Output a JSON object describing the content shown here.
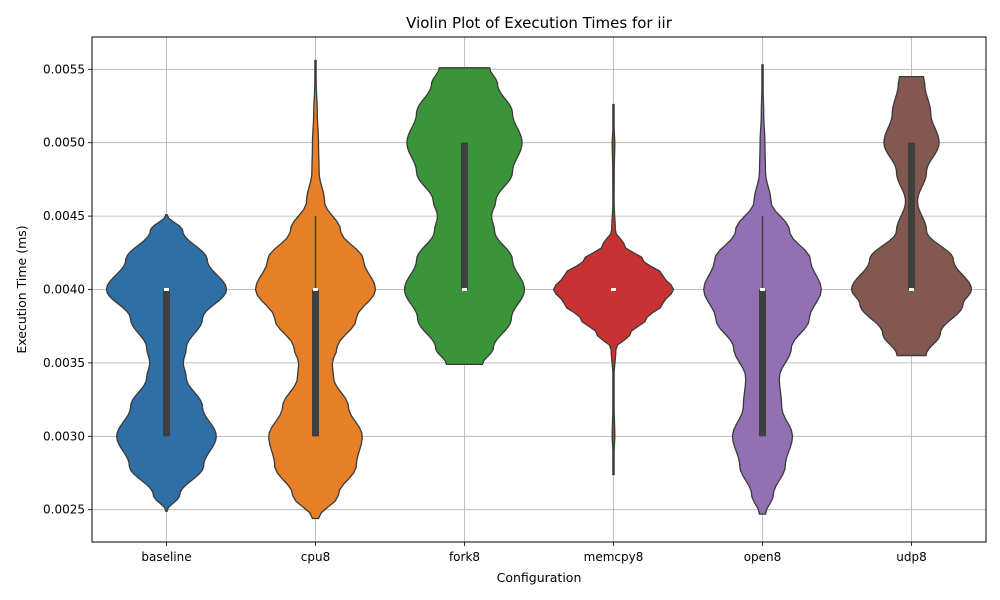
{
  "chart_data": {
    "type": "violin",
    "title": "Violin Plot of Execution Times for iir",
    "xlabel": "Configuration",
    "ylabel": "Execution Time (ms)",
    "ylim": [
      0.00228,
      0.00572
    ],
    "yticks": [
      "0.0025",
      "0.0030",
      "0.0035",
      "0.0040",
      "0.0045",
      "0.0050",
      "0.0055"
    ],
    "ytick_values": [
      0.0025,
      0.003,
      0.0035,
      0.004,
      0.0045,
      0.005,
      0.0055
    ],
    "grid": true,
    "categories": [
      "baseline",
      "cpu8",
      "fork8",
      "memcpy8",
      "open8",
      "udp8"
    ],
    "series": [
      {
        "category": "baseline",
        "color": "#2f6fa5",
        "ymin": 0.00249,
        "ymax": 0.00451,
        "q1": 0.003,
        "median": 0.004,
        "q3": 0.004,
        "whisker_low": 0.003,
        "whisker_high": 0.004,
        "density": [
          [
            0.00249,
            0.005
          ],
          [
            0.0026,
            0.22
          ],
          [
            0.0028,
            0.62
          ],
          [
            0.003,
            0.83
          ],
          [
            0.0032,
            0.6
          ],
          [
            0.0034,
            0.33
          ],
          [
            0.0035,
            0.28
          ],
          [
            0.0036,
            0.33
          ],
          [
            0.0038,
            0.6
          ],
          [
            0.004,
            1.0
          ],
          [
            0.0042,
            0.68
          ],
          [
            0.0044,
            0.27
          ],
          [
            0.00451,
            0.005
          ]
        ]
      },
      {
        "category": "cpu8",
        "color": "#e67f27",
        "ymin": 0.00244,
        "ymax": 0.00556,
        "q1": 0.003,
        "median": 0.004,
        "q3": 0.004,
        "whisker_low": 0.003,
        "whisker_high": 0.0045,
        "density": [
          [
            0.00244,
            0.05
          ],
          [
            0.0026,
            0.38
          ],
          [
            0.0028,
            0.68
          ],
          [
            0.003,
            0.78
          ],
          [
            0.0032,
            0.55
          ],
          [
            0.0034,
            0.3
          ],
          [
            0.0035,
            0.28
          ],
          [
            0.0036,
            0.36
          ],
          [
            0.0038,
            0.68
          ],
          [
            0.004,
            1.0
          ],
          [
            0.0042,
            0.8
          ],
          [
            0.0044,
            0.42
          ],
          [
            0.0046,
            0.15
          ],
          [
            0.0048,
            0.06
          ],
          [
            0.005,
            0.05
          ],
          [
            0.0052,
            0.03
          ],
          [
            0.0054,
            0.012
          ],
          [
            0.00556,
            0.002
          ]
        ]
      },
      {
        "category": "fork8",
        "color": "#3a953a",
        "ymin": 0.00349,
        "ymax": 0.00551,
        "q1": 0.004,
        "median": 0.004,
        "q3": 0.005,
        "whisker_low": 0.004,
        "whisker_high": 0.005,
        "density": [
          [
            0.00349,
            0.3
          ],
          [
            0.0036,
            0.48
          ],
          [
            0.0038,
            0.78
          ],
          [
            0.004,
            1.0
          ],
          [
            0.0042,
            0.8
          ],
          [
            0.0044,
            0.5
          ],
          [
            0.0045,
            0.45
          ],
          [
            0.0046,
            0.52
          ],
          [
            0.0048,
            0.8
          ],
          [
            0.005,
            0.96
          ],
          [
            0.0052,
            0.8
          ],
          [
            0.0054,
            0.55
          ],
          [
            0.00551,
            0.42
          ]
        ]
      },
      {
        "category": "memcpy8",
        "color": "#c83232",
        "ymin": 0.00274,
        "ymax": 0.00526,
        "q1": 0.004,
        "median": 0.004,
        "q3": 0.004,
        "whisker_low": 0.004,
        "whisker_high": 0.004,
        "density": [
          [
            0.00274,
            0.002
          ],
          [
            0.0029,
            0.01
          ],
          [
            0.003,
            0.022
          ],
          [
            0.0032,
            0.01
          ],
          [
            0.0034,
            0.008
          ],
          [
            0.0036,
            0.04
          ],
          [
            0.0037,
            0.28
          ],
          [
            0.0038,
            0.55
          ],
          [
            0.0039,
            0.82
          ],
          [
            0.004,
            1.0
          ],
          [
            0.0041,
            0.82
          ],
          [
            0.0042,
            0.5
          ],
          [
            0.0043,
            0.18
          ],
          [
            0.0044,
            0.03
          ],
          [
            0.0046,
            0.01
          ],
          [
            0.0048,
            0.012
          ],
          [
            0.005,
            0.022
          ],
          [
            0.0051,
            0.01
          ],
          [
            0.00526,
            0.002
          ]
        ]
      },
      {
        "category": "open8",
        "color": "#9370b4",
        "ymin": 0.00247,
        "ymax": 0.00553,
        "q1": 0.003,
        "median": 0.004,
        "q3": 0.004,
        "whisker_low": 0.003,
        "whisker_high": 0.0045,
        "density": [
          [
            0.00247,
            0.05
          ],
          [
            0.0026,
            0.18
          ],
          [
            0.0028,
            0.38
          ],
          [
            0.003,
            0.5
          ],
          [
            0.0032,
            0.32
          ],
          [
            0.0034,
            0.28
          ],
          [
            0.0036,
            0.48
          ],
          [
            0.0038,
            0.78
          ],
          [
            0.004,
            0.98
          ],
          [
            0.0042,
            0.8
          ],
          [
            0.0044,
            0.45
          ],
          [
            0.0046,
            0.14
          ],
          [
            0.0048,
            0.05
          ],
          [
            0.005,
            0.04
          ],
          [
            0.0052,
            0.02
          ],
          [
            0.0054,
            0.008
          ],
          [
            0.00553,
            0.002
          ]
        ]
      },
      {
        "category": "udp8",
        "color": "#835850",
        "ymin": 0.00355,
        "ymax": 0.00545,
        "q1": 0.004,
        "median": 0.004,
        "q3": 0.005,
        "whisker_low": 0.004,
        "whisker_high": 0.005,
        "density": [
          [
            0.00355,
            0.24
          ],
          [
            0.0037,
            0.48
          ],
          [
            0.0039,
            0.86
          ],
          [
            0.004,
            1.0
          ],
          [
            0.0042,
            0.7
          ],
          [
            0.0044,
            0.25
          ],
          [
            0.0046,
            0.1
          ],
          [
            0.0048,
            0.25
          ],
          [
            0.005,
            0.46
          ],
          [
            0.0052,
            0.32
          ],
          [
            0.0054,
            0.22
          ],
          [
            0.00545,
            0.2
          ]
        ]
      }
    ]
  }
}
